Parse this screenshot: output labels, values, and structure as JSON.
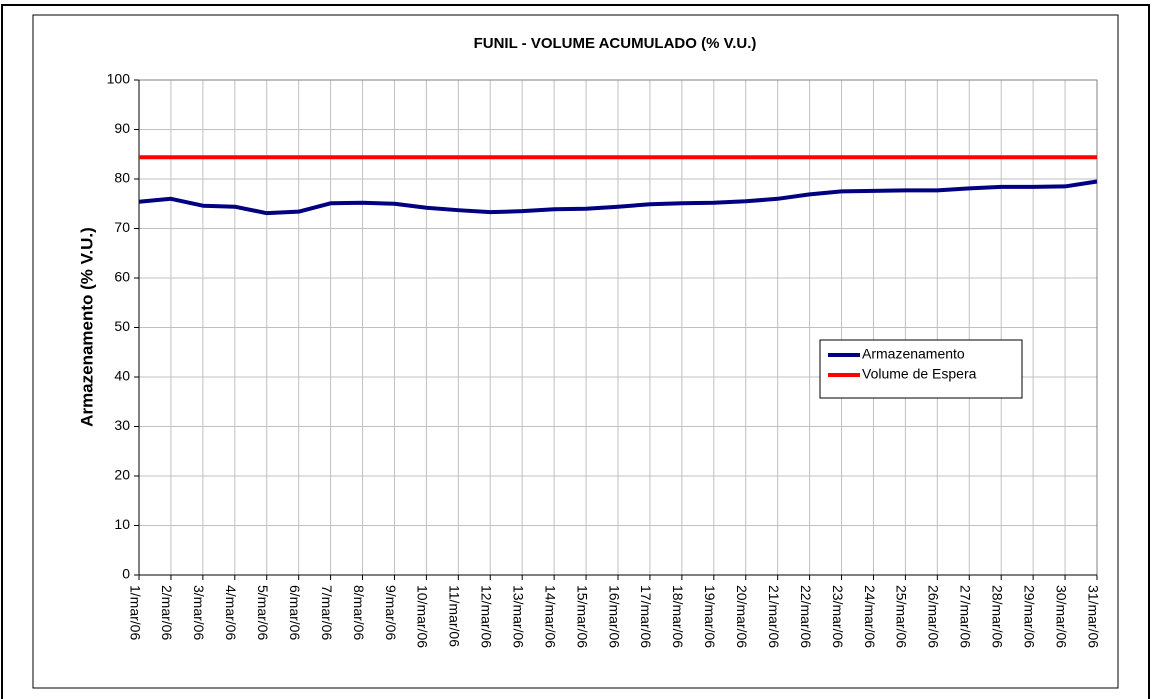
{
  "chart_data": {
    "type": "line",
    "title": "FUNIL - VOLUME ACUMULADO (% V.U.)",
    "y_label": "Armazenamento (% V.U.)",
    "categories": [
      "1/mar/06",
      "2/mar/06",
      "3/mar/06",
      "4/mar/06",
      "5/mar/06",
      "6/mar/06",
      "7/mar/06",
      "8/mar/06",
      "9/mar/06",
      "10/mar/06",
      "11/mar/06",
      "12/mar/06",
      "13/mar/06",
      "14/mar/06",
      "15/mar/06",
      "16/mar/06",
      "17/mar/06",
      "18/mar/06",
      "19/mar/06",
      "20/mar/06",
      "21/mar/06",
      "22/mar/06",
      "23/mar/06",
      "24/mar/06",
      "25/mar/06",
      "26/mar/06",
      "27/mar/06",
      "28/mar/06",
      "29/mar/06",
      "30/mar/06",
      "31/mar/06"
    ],
    "series": [
      {
        "name": "Armazenamento",
        "color": "#000080",
        "values": [
          75.4,
          76.0,
          74.6,
          74.4,
          73.1,
          73.4,
          75.1,
          75.2,
          75.0,
          74.2,
          73.7,
          73.3,
          73.5,
          73.9,
          74.0,
          74.4,
          74.9,
          75.1,
          75.2,
          75.5,
          76.0,
          76.9,
          77.5,
          77.6,
          77.7,
          77.7,
          78.1,
          78.4,
          78.4,
          78.5,
          79.5
        ]
      },
      {
        "name": "Volume de Espera",
        "color": "#ff0000",
        "values": [
          84.4,
          84.4,
          84.4,
          84.4,
          84.4,
          84.4,
          84.4,
          84.4,
          84.4,
          84.4,
          84.4,
          84.4,
          84.4,
          84.4,
          84.4,
          84.4,
          84.4,
          84.4,
          84.4,
          84.4,
          84.4,
          84.4,
          84.4,
          84.4,
          84.4,
          84.4,
          84.4,
          84.4,
          84.4,
          84.4,
          84.4
        ]
      }
    ],
    "ylim": [
      0,
      100
    ],
    "yticks": [
      0,
      10,
      20,
      30,
      40,
      50,
      60,
      70,
      80,
      90,
      100
    ],
    "grid": true,
    "legend": "right"
  }
}
